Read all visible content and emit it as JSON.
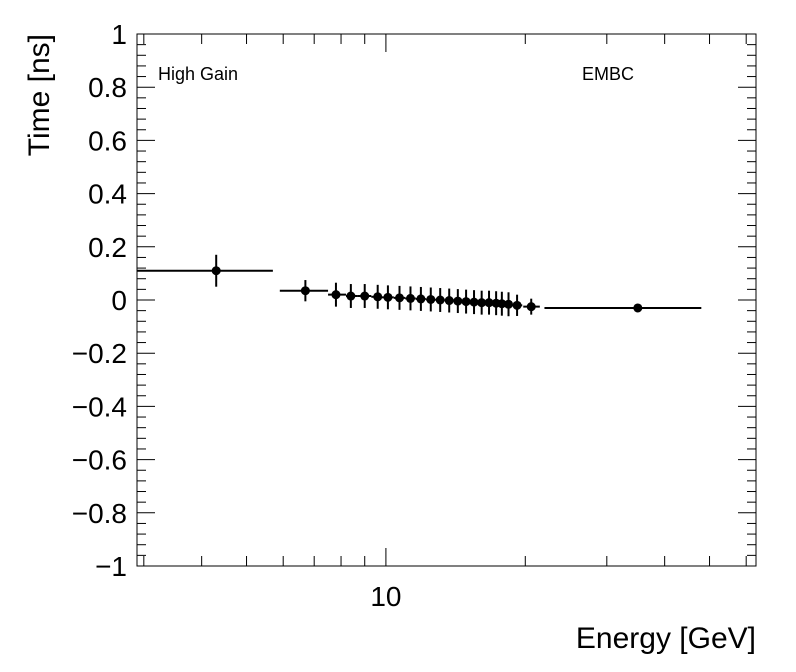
{
  "chart_data": {
    "type": "scatter",
    "xlabel": "Energy [GeV]",
    "ylabel": "Time [ns]",
    "xscale": "log",
    "xlim": [
      2.9,
      63
    ],
    "ylim": [
      -1,
      1
    ],
    "y_ticks": [
      -1,
      -0.8,
      -0.6,
      -0.4,
      -0.2,
      0,
      0.2,
      0.4,
      0.6,
      0.8,
      1
    ],
    "y_tick_labels": [
      "−1",
      "−0.8",
      "−0.6",
      "−0.4",
      "−0.2",
      "0",
      "0.2",
      "0.4",
      "0.6",
      "0.8",
      "1"
    ],
    "x_tick_labels": [
      {
        "value": 10,
        "label": "10"
      }
    ],
    "annotations": [
      {
        "text": "High Gain",
        "position": "top-left"
      },
      {
        "text": "EMBC",
        "position": "top-right"
      }
    ],
    "grid": false,
    "points": [
      {
        "x": 4.3,
        "xlo": 2.9,
        "xhi": 5.7,
        "y": 0.11,
        "err": 0.06
      },
      {
        "x": 6.7,
        "xlo": 5.9,
        "xhi": 7.5,
        "y": 0.035,
        "err": 0.04
      },
      {
        "x": 7.8,
        "xlo": 7.5,
        "xhi": 8.2,
        "y": 0.02,
        "err": 0.045
      },
      {
        "x": 8.4,
        "xlo": 8.2,
        "xhi": 8.7,
        "y": 0.015,
        "err": 0.045
      },
      {
        "x": 9.0,
        "xlo": 8.7,
        "xhi": 9.3,
        "y": 0.015,
        "err": 0.045
      },
      {
        "x": 9.6,
        "xlo": 9.3,
        "xhi": 9.8,
        "y": 0.012,
        "err": 0.045
      },
      {
        "x": 10.1,
        "xlo": 9.8,
        "xhi": 10.4,
        "y": 0.01,
        "err": 0.045
      },
      {
        "x": 10.7,
        "xlo": 10.4,
        "xhi": 11.0,
        "y": 0.008,
        "err": 0.045
      },
      {
        "x": 11.3,
        "xlo": 11.0,
        "xhi": 11.6,
        "y": 0.006,
        "err": 0.045
      },
      {
        "x": 11.9,
        "xlo": 11.6,
        "xhi": 12.2,
        "y": 0.004,
        "err": 0.045
      },
      {
        "x": 12.5,
        "xlo": 12.2,
        "xhi": 12.8,
        "y": 0.002,
        "err": 0.045
      },
      {
        "x": 13.1,
        "xlo": 12.8,
        "xhi": 13.4,
        "y": 0.0,
        "err": 0.045
      },
      {
        "x": 13.7,
        "xlo": 13.4,
        "xhi": 14.0,
        "y": -0.002,
        "err": 0.045
      },
      {
        "x": 14.3,
        "xlo": 14.0,
        "xhi": 14.6,
        "y": -0.004,
        "err": 0.045
      },
      {
        "x": 14.9,
        "xlo": 14.6,
        "xhi": 15.2,
        "y": -0.006,
        "err": 0.045
      },
      {
        "x": 15.5,
        "xlo": 15.2,
        "xhi": 15.8,
        "y": -0.008,
        "err": 0.045
      },
      {
        "x": 16.1,
        "xlo": 15.8,
        "xhi": 16.4,
        "y": -0.01,
        "err": 0.045
      },
      {
        "x": 16.7,
        "xlo": 16.4,
        "xhi": 17.0,
        "y": -0.01,
        "err": 0.045
      },
      {
        "x": 17.3,
        "xlo": 17.0,
        "xhi": 17.6,
        "y": -0.012,
        "err": 0.045
      },
      {
        "x": 17.8,
        "xlo": 17.6,
        "xhi": 18.1,
        "y": -0.014,
        "err": 0.045
      },
      {
        "x": 18.4,
        "xlo": 18.1,
        "xhi": 18.7,
        "y": -0.016,
        "err": 0.045
      },
      {
        "x": 19.2,
        "xlo": 18.7,
        "xhi": 19.7,
        "y": -0.02,
        "err": 0.04
      },
      {
        "x": 20.6,
        "xlo": 19.8,
        "xhi": 21.5,
        "y": -0.025,
        "err": 0.03
      },
      {
        "x": 35.0,
        "xlo": 22.0,
        "xhi": 48.0,
        "y": -0.03,
        "err": 0.012
      }
    ]
  }
}
